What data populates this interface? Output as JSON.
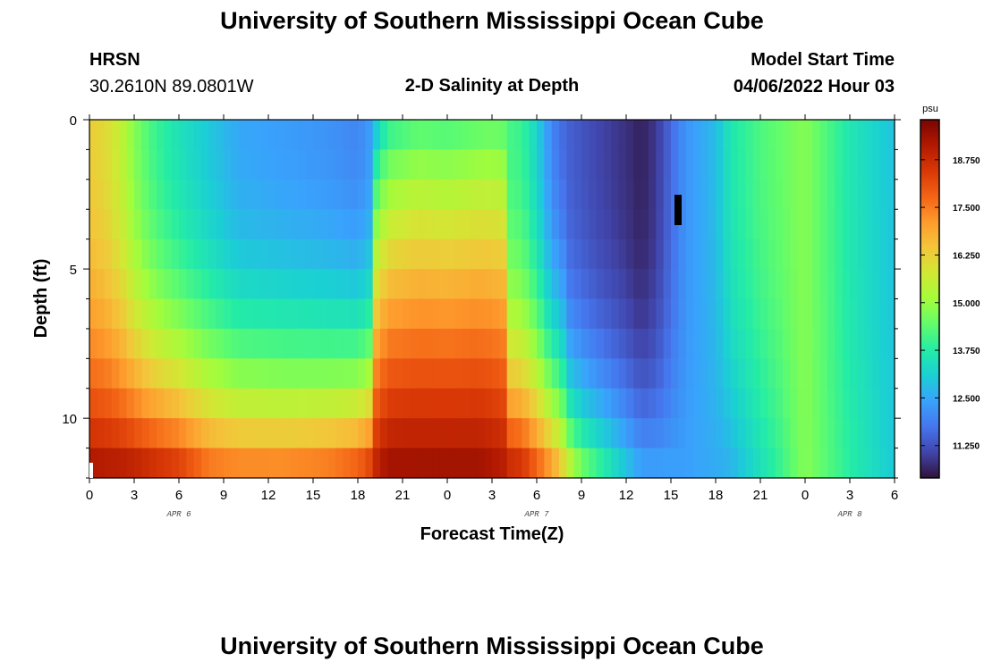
{
  "header": {
    "title": "University of Southern Mississippi Ocean Cube",
    "station": "HRSN",
    "coords": "30.2610N  89.0801W",
    "chart_title": "2-D Salinity at Depth",
    "model_start_label": "Model Start Time",
    "model_start_value": "04/06/2022 Hour 03"
  },
  "footer": {
    "title": "University of Southern Mississippi Ocean Cube"
  },
  "colors": {
    "colormap": [
      "#30123b",
      "#4145ab",
      "#4675ed",
      "#39a2fc",
      "#1bcfd4",
      "#24eca6",
      "#61fc6c",
      "#a4fc3b",
      "#d1e834",
      "#f3c63a",
      "#fe9b2d",
      "#f36315",
      "#d93806",
      "#b11901",
      "#7a0402"
    ]
  },
  "chart_data": {
    "type": "heatmap",
    "title": "2-D Salinity at Depth",
    "xlabel": "Forecast Time(Z)",
    "ylabel": "Depth (ft)",
    "x_tick_labels": [
      "0",
      "3",
      "6",
      "9",
      "12",
      "15",
      "18",
      "21",
      "0",
      "3",
      "6",
      "9",
      "12",
      "15",
      "18",
      "21",
      "0",
      "3",
      "6"
    ],
    "x_date_labels": [
      {
        "label": "APR 6",
        "x_hour": 6
      },
      {
        "label": "APR 7",
        "x_hour": 30
      },
      {
        "label": "APR 8",
        "x_hour": 51
      }
    ],
    "x_range_hours": [
      0,
      54
    ],
    "y_tick_labels": [
      "0",
      "5",
      "10"
    ],
    "y_ticks": [
      0,
      5,
      10
    ],
    "ylim": [
      0,
      12
    ],
    "colorbar": {
      "unit": "psu",
      "range": [
        10.4,
        19.8
      ],
      "tick_labels": [
        "18.750",
        "17.500",
        "16.250",
        "15.000",
        "13.750",
        "12.500",
        "11.250"
      ],
      "tick_values": [
        18.75,
        17.5,
        16.25,
        15.0,
        13.75,
        12.5,
        11.25
      ]
    },
    "surface_salinity_by_hour": [
      [
        0,
        16.3
      ],
      [
        1,
        16.1
      ],
      [
        2,
        15.6
      ],
      [
        3,
        14.8
      ],
      [
        4,
        14.2
      ],
      [
        5,
        13.8
      ],
      [
        6,
        13.5
      ],
      [
        8,
        13.0
      ],
      [
        10,
        12.5
      ],
      [
        12,
        12.4
      ],
      [
        14,
        12.3
      ],
      [
        16,
        12.2
      ],
      [
        18,
        12.0
      ],
      [
        19,
        12.4
      ],
      [
        20,
        13.7
      ],
      [
        22,
        14.1
      ],
      [
        24,
        14.0
      ],
      [
        27,
        14.3
      ],
      [
        29,
        14.0
      ],
      [
        30,
        13.2
      ],
      [
        31,
        12.0
      ],
      [
        32,
        11.5
      ],
      [
        34,
        11.1
      ],
      [
        36,
        10.8
      ],
      [
        37,
        10.6
      ],
      [
        38,
        10.9
      ],
      [
        39,
        11.6
      ],
      [
        40,
        12.2
      ],
      [
        42,
        12.8
      ],
      [
        43,
        13.6
      ],
      [
        45,
        14.2
      ],
      [
        48,
        14.8
      ],
      [
        51,
        13.6
      ],
      [
        54,
        12.9
      ]
    ],
    "bottom_salinity_by_hour": [
      [
        0,
        19.4
      ],
      [
        3,
        19.3
      ],
      [
        6,
        18.8
      ],
      [
        8,
        18.0
      ],
      [
        10,
        17.8
      ],
      [
        13,
        17.8
      ],
      [
        16,
        18.0
      ],
      [
        18,
        18.4
      ],
      [
        20,
        19.5
      ],
      [
        26,
        19.5
      ],
      [
        29,
        19.0
      ],
      [
        31,
        17.5
      ],
      [
        33,
        15.0
      ],
      [
        35,
        13.8
      ],
      [
        37,
        12.6
      ],
      [
        40,
        12.4
      ],
      [
        43,
        12.6
      ],
      [
        46,
        13.8
      ],
      [
        48,
        14.8
      ],
      [
        51,
        13.8
      ],
      [
        54,
        13.0
      ]
    ]
  }
}
